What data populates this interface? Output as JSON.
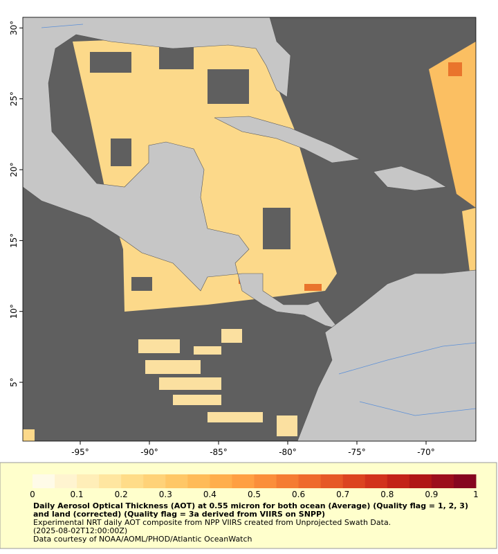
{
  "map": {
    "xlim": [
      -99.15,
      -66.4
    ],
    "ylim": [
      0.85,
      30.75
    ],
    "xticks": [
      {
        "value": -95,
        "label": "-95°"
      },
      {
        "value": -90,
        "label": "-90°"
      },
      {
        "value": -85,
        "label": "-85°"
      },
      {
        "value": -80,
        "label": "-80°"
      },
      {
        "value": -75,
        "label": "-75°"
      },
      {
        "value": -70,
        "label": "-70°"
      }
    ],
    "yticks": [
      {
        "value": 30,
        "label": "30°"
      },
      {
        "value": 25,
        "label": "25°"
      },
      {
        "value": 20,
        "label": "20°"
      },
      {
        "value": 15,
        "label": "15°"
      },
      {
        "value": 10,
        "label": "10°"
      },
      {
        "value": 5,
        "label": "5°"
      }
    ]
  },
  "colorbar": {
    "range": [
      0,
      1
    ],
    "ticks": [
      0,
      0.1,
      0.2,
      0.3,
      0.4,
      0.5,
      0.6,
      0.7,
      0.8,
      0.9,
      1
    ],
    "colors": [
      "#fffbe8",
      "#fff4d0",
      "#ffeeb8",
      "#ffe6a0",
      "#ffdc88",
      "#ffd278",
      "#ffc766",
      "#ffbb58",
      "#ffae4c",
      "#ff9f42",
      "#fb8e3a",
      "#f57c32",
      "#ef6a2c",
      "#e65826",
      "#dc4420",
      "#d2321c",
      "#c32218",
      "#b01616",
      "#9c0e1c",
      "#860620"
    ]
  },
  "caption": {
    "title": "Daily Aerosol Optical Thickness (AOT) at 0.55 micron for both ocean (Average) (Quality flag = 1, 2, 3) and land (corrected) (Quality flag = 3a derived from VIIRS on SNPP)",
    "lines": [
      "Experimental NRT daily AOT composite from NPP VIIRS created from Unprojected Swath Data.",
      "(2025-08-02T12:00:00Z)",
      "Data courtesy of NOAA/AOML/PHOD/Atlantic OceanWatch"
    ]
  }
}
